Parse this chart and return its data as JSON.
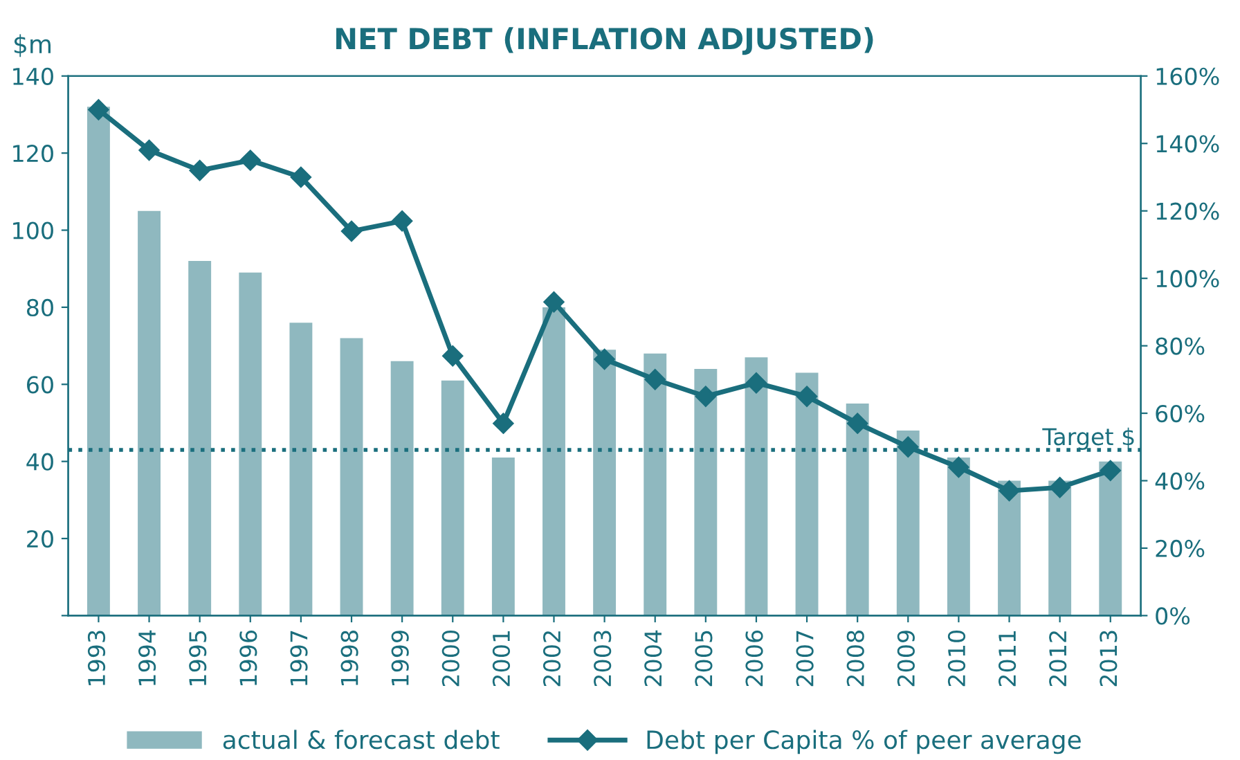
{
  "chart_data": {
    "type": "bar",
    "title": "NET DEBT (INFLATION ADJUSTED)",
    "ylabel": "$m",
    "categories": [
      "1993",
      "1994",
      "1995",
      "1996",
      "1997",
      "1998",
      "1999",
      "2000",
      "2001",
      "2002",
      "2003",
      "2004",
      "2005",
      "2006",
      "2007",
      "2008",
      "2009",
      "2010",
      "2011",
      "2012",
      "2013"
    ],
    "series": [
      {
        "name": "actual & forecast debt",
        "color": "#8fb8bf",
        "values": [
          132,
          105,
          92,
          89,
          76,
          72,
          66,
          61,
          41,
          80,
          69,
          68,
          64,
          67,
          63,
          55,
          48,
          41,
          35,
          35,
          40
        ]
      },
      {
        "name": "Debt per Capita % of peer average",
        "type": "line",
        "axis": "y2",
        "color": "#1a6e7d",
        "marker": "diamond",
        "line_style": "solid",
        "values": [
          150,
          138,
          132,
          135,
          130,
          114,
          117,
          77,
          57,
          93,
          76,
          70,
          65,
          69,
          65,
          57,
          50,
          44,
          37,
          38,
          43
        ]
      }
    ],
    "ylim": [
      0,
      140
    ],
    "yticks": [
      {
        "value": 0,
        "label": null
      },
      20,
      40,
      60,
      80,
      100,
      120,
      140
    ],
    "y2lim": [
      0,
      160
    ],
    "y2ticks": [
      {
        "value": 0,
        "label": "0%"
      },
      {
        "value": 20,
        "label": "20%"
      },
      {
        "value": 40,
        "label": "40%"
      },
      {
        "value": 60,
        "label": "60%"
      },
      {
        "value": 80,
        "label": "80%"
      },
      {
        "value": 100,
        "label": "100%"
      },
      {
        "value": 120,
        "label": "120%"
      },
      {
        "value": 140,
        "label": "140%"
      },
      {
        "value": 160,
        "label": "160%"
      }
    ],
    "ref_lines": [
      {
        "axis": "y",
        "value": 43,
        "label": "Target $",
        "color": "#1a6e7d",
        "line_style": "dotted"
      }
    ],
    "legend": "bottom",
    "grid": false
  }
}
